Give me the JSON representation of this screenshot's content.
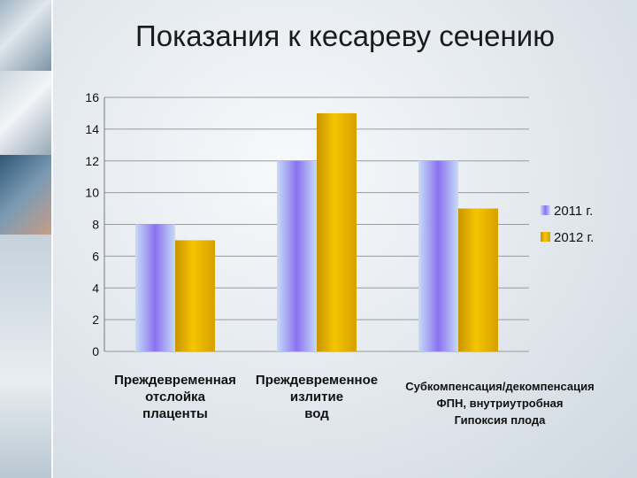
{
  "title": "Показания к кесареву сечению",
  "chart_data": {
    "type": "bar",
    "title": "",
    "xlabel": "",
    "ylabel": "",
    "ylim": [
      0,
      16
    ],
    "yticks": [
      0,
      2,
      4,
      6,
      8,
      10,
      12,
      14,
      16
    ],
    "grid": true,
    "legend_position": "right",
    "categories": [
      "Преждевременная отслойка плаценты",
      "Преждевременное излитие вод",
      "Субкомпенсация/декомпенсация ФПН, внутриутробная Гипоксия плода"
    ],
    "series": [
      {
        "name": "2011 г.",
        "values": [
          8,
          12,
          12
        ],
        "color": "#8f7bf2"
      },
      {
        "name": "2012 г.",
        "values": [
          7,
          15,
          9
        ],
        "color": "#e8b400"
      }
    ]
  },
  "category_labels": [
    "Преждевременная\nотслойка\nплаценты",
    "Преждевременное\nизлитие\nвод",
    "Субкомпенсация/декомпенсация\nФПН, внутриутробная\nГипоксия плода"
  ]
}
